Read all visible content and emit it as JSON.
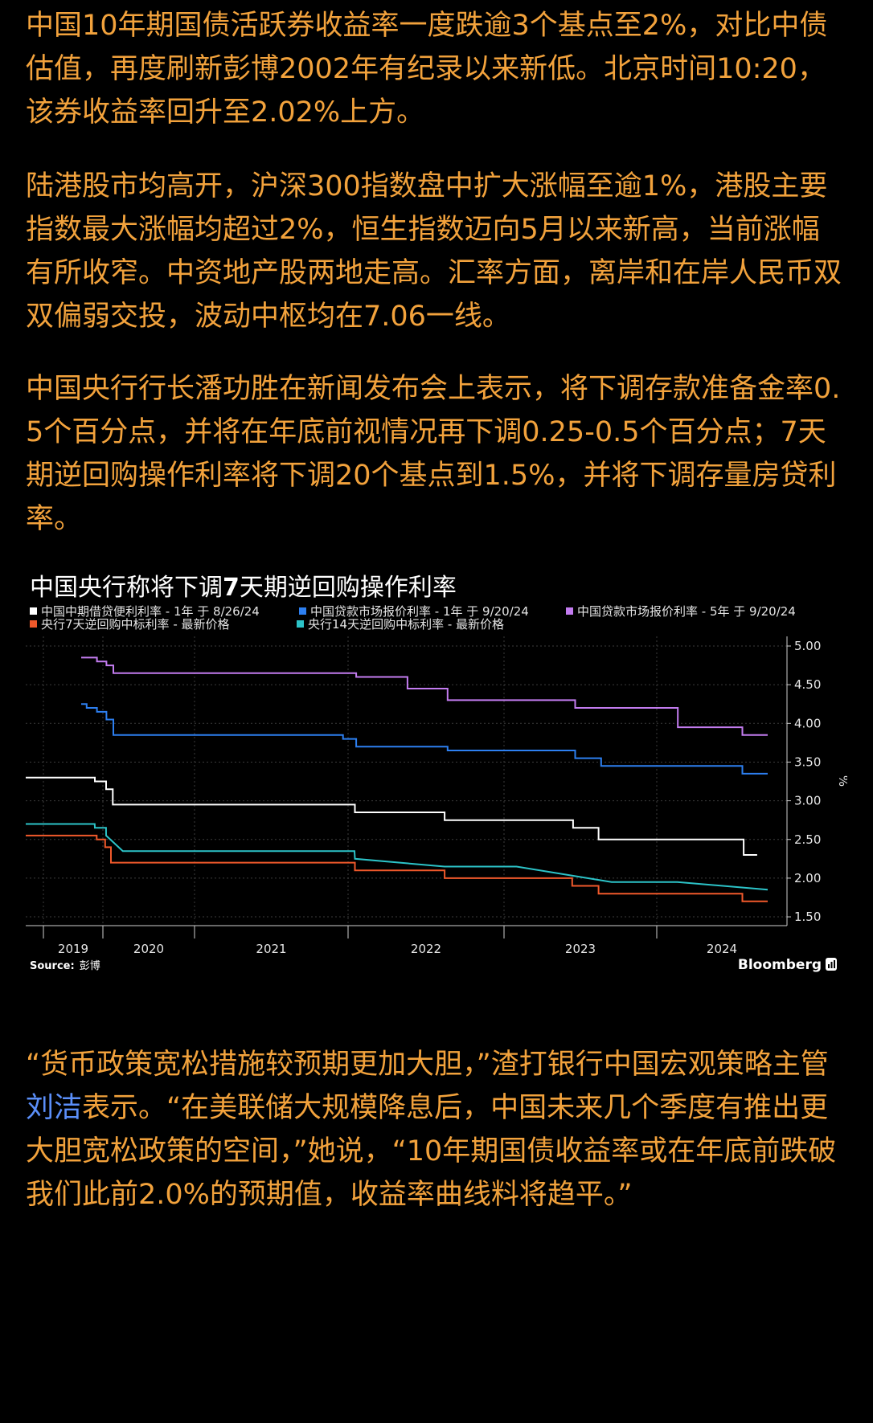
{
  "colors": {
    "background": "#000000",
    "text": "#f2a23c",
    "link": "#5b8ff9"
  },
  "article": {
    "paragraphs": [
      "中国10年期国债活跃券收益率一度跌逾3个基点至2%，对比中债估值，再度刷新彭博2002年有纪录以来新低。北京时间10:20，该券收益率回升至2.02%上方。",
      "陆港股市均高开，沪深300指数盘中扩大涨幅至逾1%，港股主要指数最大涨幅均超过2%，恒生指数迈向5月以来新高，当前涨幅有所收窄。中资地产股两地走高。汇率方面，离岸和在岸人民币双双偏弱交投，波动中枢均在7.06一线。",
      "中国央行行长潘功胜在新闻发布会上表示，将下调存款准备金率0.5个百分点，并将在年底前视情况再下调0.25-0.5个百分点；7天期逆回购操作利率将下调20个基点到1.5%，并将下调存量房贷利率。"
    ],
    "quote": {
      "before": "“货币政策宽松措施较预期更加大胆，”渣打银行中国宏观策略主管",
      "link_text": "刘洁",
      "after": "表示。“在美联储大规模降息后，中国未来几个季度有推出更大胆宽松政策的空间，”她说，“10年期国债收益率或在年底前跌破我们此前2.0%的预期值，收益率曲线料将趋平。”"
    }
  },
  "chart_data": {
    "type": "line",
    "title": "中国央行称将下调7天期逆回购操作利率",
    "ylabel": "%",
    "ylim": [
      1.4,
      5.1
    ],
    "xlim": [
      "2018-09-01",
      "2024-11-01"
    ],
    "y_tick_labels": [
      "5.00",
      "4.50",
      "4.00",
      "3.50",
      "3.00",
      "2.50",
      "2.00",
      "1.50"
    ],
    "x_tick_labels": [
      "2019",
      "2020",
      "2021",
      "2022",
      "2023",
      "2024"
    ],
    "grid": true,
    "legend_position": "top-left",
    "series": [
      {
        "name": "中国中期借贷便利利率 - 1年 于 8/26/24",
        "color": "#ffffff",
        "shape": "step",
        "points": [
          [
            "2018-09-01",
            3.3
          ],
          [
            "2019-11-05",
            3.25
          ],
          [
            "2020-02-17",
            3.15
          ],
          [
            "2020-04-15",
            2.95
          ],
          [
            "2022-01-17",
            2.85
          ],
          [
            "2022-08-15",
            2.75
          ],
          [
            "2023-06-15",
            2.65
          ],
          [
            "2023-08-15",
            2.5
          ],
          [
            "2024-07-25",
            2.3
          ],
          [
            "2024-08-26",
            2.3
          ]
        ]
      },
      {
        "name": "中国贷款市场报价利率 - 1年 于 9/20/24",
        "color": "#2d7ff0",
        "shape": "step",
        "points": [
          [
            "2019-08-20",
            4.25
          ],
          [
            "2019-09-20",
            4.2
          ],
          [
            "2019-11-20",
            4.15
          ],
          [
            "2020-02-20",
            4.05
          ],
          [
            "2020-04-20",
            3.85
          ],
          [
            "2021-12-20",
            3.8
          ],
          [
            "2022-01-20",
            3.7
          ],
          [
            "2022-08-22",
            3.65
          ],
          [
            "2023-06-20",
            3.55
          ],
          [
            "2023-08-21",
            3.45
          ],
          [
            "2024-07-22",
            3.35
          ],
          [
            "2024-09-20",
            3.35
          ]
        ]
      },
      {
        "name": "中国贷款市场报价利率 - 5年 于 9/20/24",
        "color": "#c37cf0",
        "shape": "step",
        "points": [
          [
            "2019-08-20",
            4.85
          ],
          [
            "2019-11-20",
            4.8
          ],
          [
            "2020-02-20",
            4.75
          ],
          [
            "2020-04-20",
            4.65
          ],
          [
            "2022-01-20",
            4.6
          ],
          [
            "2022-05-20",
            4.45
          ],
          [
            "2022-08-22",
            4.3
          ],
          [
            "2023-06-20",
            4.2
          ],
          [
            "2024-02-20",
            3.95
          ],
          [
            "2024-07-22",
            3.85
          ],
          [
            "2024-09-20",
            3.85
          ]
        ]
      },
      {
        "name": "央行7天逆回购中标利率 - 最新价格",
        "color": "#f0592b",
        "shape": "step",
        "points": [
          [
            "2018-09-01",
            2.55
          ],
          [
            "2019-11-18",
            2.5
          ],
          [
            "2020-02-03",
            2.4
          ],
          [
            "2020-03-30",
            2.2
          ],
          [
            "2022-01-17",
            2.1
          ],
          [
            "2022-08-15",
            2.0
          ],
          [
            "2023-06-13",
            1.9
          ],
          [
            "2023-08-15",
            1.8
          ],
          [
            "2024-07-22",
            1.7
          ],
          [
            "2024-09-20",
            1.7
          ]
        ]
      },
      {
        "name": "央行14天逆回购中标利率 - 最新价格",
        "color": "#2cc3c8",
        "shape": "linear",
        "points": [
          [
            "2018-09-01",
            2.7
          ],
          [
            "2019-11-04",
            2.7
          ],
          [
            "2019-11-05",
            2.65
          ],
          [
            "2020-02-16",
            2.65
          ],
          [
            "2020-02-17",
            2.55
          ],
          [
            "2020-05-20",
            2.35
          ],
          [
            "2022-01-16",
            2.35
          ],
          [
            "2022-01-17",
            2.25
          ],
          [
            "2022-08-15",
            2.15
          ],
          [
            "2023-01-31",
            2.15
          ],
          [
            "2023-09-15",
            1.95
          ],
          [
            "2024-02-19",
            1.95
          ],
          [
            "2024-09-20",
            1.85
          ]
        ]
      }
    ],
    "source": {
      "label": "Source:",
      "name": "彭博"
    },
    "brand": "Bloomberg"
  }
}
